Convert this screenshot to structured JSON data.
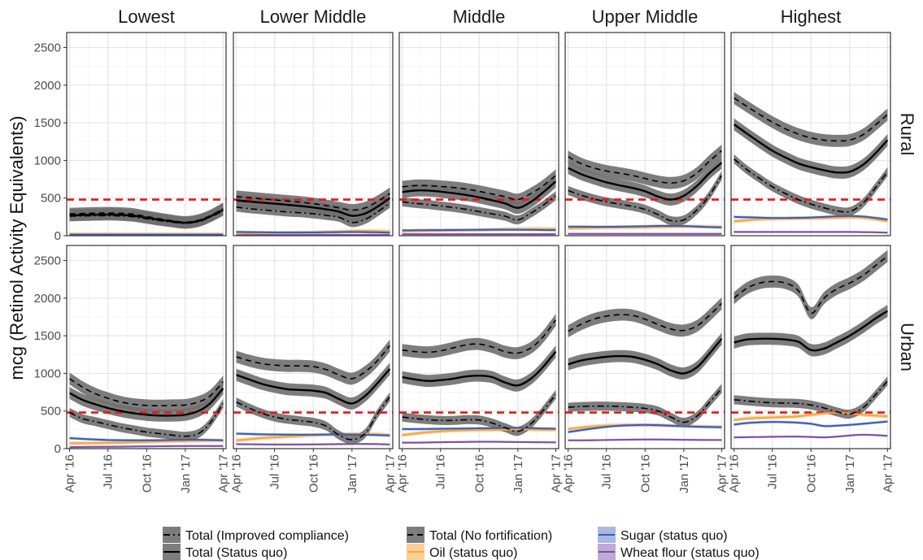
{
  "chart_data": {
    "type": "line",
    "ylabel": "mcg (Retinol Activity Equivalents)",
    "ylim": [
      0,
      2700
    ],
    "y_ticks": [
      0,
      500,
      1000,
      1500,
      2000,
      2500
    ],
    "x_ticks": [
      "Apr '16",
      "Jul '16",
      "Oct '16",
      "Jan '17",
      "Apr '17"
    ],
    "x_dates": [
      "2016-04-01",
      "2016-05-01",
      "2016-06-01",
      "2016-07-01",
      "2016-08-01",
      "2016-09-01",
      "2016-10-01",
      "2016-11-01",
      "2016-12-01",
      "2017-01-01",
      "2017-02-01",
      "2017-03-01",
      "2017-04-01"
    ],
    "columns": [
      "Lowest",
      "Lower Middle",
      "Middle",
      "Upper Middle",
      "Highest"
    ],
    "rows": [
      "Rural",
      "Urban"
    ],
    "reference_line": {
      "value": 480,
      "color": "#e41a1c",
      "style": "dashed"
    },
    "grid": true,
    "legend": {
      "position": "bottom",
      "items": [
        {
          "label": "Total (Improved compliance)",
          "key": "improved",
          "color": "#000000",
          "dash": "8,4,2,4"
        },
        {
          "label": "Total (No fortification)",
          "key": "nofort",
          "color": "#000000",
          "dash": "7,5"
        },
        {
          "label": "Sugar (status quo)",
          "key": "sugar",
          "color": "#3b5bb5",
          "dash": ""
        },
        {
          "label": "Total (Status quo)",
          "key": "status",
          "color": "#000000",
          "dash": ""
        },
        {
          "label": "Oil (status quo)",
          "key": "oil",
          "color": "#f4a640",
          "dash": ""
        },
        {
          "label": "Wheat flour (status quo)",
          "key": "wheat",
          "color": "#7e4fa5",
          "dash": ""
        }
      ]
    },
    "panels": [
      {
        "row": "Rural",
        "col": "Lowest",
        "series": {
          "improved": [
            260,
            262,
            265,
            266,
            262,
            250,
            225,
            200,
            180,
            165,
            185,
            245,
            330
          ],
          "nofort": [
            290,
            295,
            300,
            302,
            298,
            285,
            255,
            225,
            200,
            180,
            205,
            265,
            360
          ],
          "status": [
            270,
            275,
            280,
            282,
            278,
            265,
            240,
            212,
            190,
            172,
            195,
            255,
            345
          ],
          "sugar": [
            15,
            15,
            15,
            15,
            15,
            15,
            15,
            15,
            15,
            15,
            15,
            15,
            15
          ],
          "oil": [
            20,
            20,
            20,
            20,
            20,
            20,
            20,
            20,
            20,
            20,
            20,
            20,
            20
          ],
          "wheat": [
            8,
            8,
            8,
            8,
            8,
            8,
            8,
            8,
            8,
            8,
            8,
            8,
            8
          ]
        }
      },
      {
        "row": "Rural",
        "col": "Lower Middle",
        "series": {
          "improved": [
            380,
            360,
            345,
            330,
            315,
            305,
            290,
            270,
            245,
            175,
            215,
            310,
            430
          ],
          "nofort": [
            520,
            505,
            490,
            475,
            460,
            445,
            425,
            400,
            370,
            340,
            370,
            450,
            560
          ],
          "status": [
            470,
            455,
            440,
            425,
            410,
            395,
            375,
            350,
            320,
            265,
            295,
            380,
            500
          ],
          "sugar": [
            50,
            48,
            45,
            43,
            42,
            42,
            43,
            45,
            48,
            50,
            48,
            45,
            40
          ],
          "oil": [
            30,
            32,
            35,
            38,
            40,
            42,
            45,
            50,
            55,
            60,
            62,
            60,
            55
          ],
          "wheat": [
            10,
            10,
            10,
            10,
            10,
            10,
            10,
            10,
            10,
            10,
            10,
            10,
            10
          ]
        }
      },
      {
        "row": "Rural",
        "col": "Middle",
        "series": {
          "improved": [
            450,
            430,
            415,
            395,
            375,
            350,
            320,
            290,
            260,
            210,
            300,
            400,
            530
          ],
          "nofort": [
            650,
            665,
            665,
            655,
            640,
            620,
            590,
            555,
            520,
            480,
            560,
            660,
            800
          ],
          "status": [
            580,
            600,
            600,
            585,
            565,
            540,
            510,
            470,
            430,
            370,
            450,
            570,
            720
          ],
          "sugar": [
            70,
            72,
            74,
            75,
            76,
            77,
            78,
            80,
            80,
            80,
            78,
            76,
            75
          ],
          "oil": [
            60,
            62,
            65,
            68,
            70,
            72,
            75,
            80,
            85,
            88,
            90,
            90,
            90
          ],
          "wheat": [
            20,
            20,
            20,
            20,
            20,
            20,
            20,
            20,
            20,
            20,
            20,
            20,
            20
          ]
        }
      },
      {
        "row": "Rural",
        "col": "Upper Middle",
        "series": {
          "improved": [
            600,
            540,
            490,
            450,
            420,
            390,
            350,
            280,
            200,
            210,
            340,
            520,
            800
          ],
          "nofort": [
            1050,
            960,
            900,
            860,
            830,
            800,
            760,
            720,
            700,
            730,
            830,
            980,
            1130
          ],
          "status": [
            900,
            820,
            760,
            710,
            670,
            635,
            590,
            520,
            480,
            530,
            660,
            820,
            970
          ],
          "sugar": [
            120,
            120,
            118,
            118,
            120,
            122,
            125,
            130,
            130,
            128,
            122,
            115,
            110
          ],
          "oil": [
            100,
            102,
            105,
            108,
            110,
            112,
            115,
            118,
            120,
            122,
            122,
            120,
            118
          ],
          "wheat": [
            25,
            25,
            25,
            25,
            25,
            25,
            25,
            25,
            25,
            25,
            25,
            25,
            25
          ]
        }
      },
      {
        "row": "Rural",
        "col": "Highest",
        "series": {
          "improved": [
            1020,
            880,
            760,
            650,
            560,
            480,
            420,
            370,
            330,
            320,
            430,
            620,
            850
          ],
          "nofort": [
            1830,
            1720,
            1610,
            1510,
            1420,
            1350,
            1300,
            1270,
            1260,
            1270,
            1340,
            1460,
            1610
          ],
          "status": [
            1480,
            1360,
            1240,
            1130,
            1040,
            960,
            910,
            870,
            840,
            850,
            940,
            1080,
            1270
          ],
          "sugar": [
            250,
            245,
            240,
            235,
            235,
            238,
            242,
            250,
            258,
            262,
            255,
            238,
            215
          ],
          "oil": [
            190,
            205,
            218,
            225,
            228,
            230,
            232,
            235,
            240,
            245,
            240,
            220,
            195
          ],
          "wheat": [
            50,
            50,
            50,
            50,
            50,
            50,
            50,
            50,
            50,
            50,
            48,
            45,
            40
          ]
        }
      },
      {
        "row": "Urban",
        "col": "Lowest",
        "series": {
          "improved": [
            480,
            400,
            360,
            320,
            280,
            250,
            220,
            200,
            180,
            165,
            200,
            340,
            600
          ],
          "nofort": [
            930,
            820,
            730,
            670,
            620,
            590,
            575,
            570,
            575,
            580,
            620,
            700,
            890
          ],
          "status": [
            740,
            650,
            590,
            540,
            500,
            470,
            450,
            440,
            440,
            450,
            500,
            600,
            800
          ],
          "sugar": [
            140,
            130,
            122,
            115,
            112,
            110,
            110,
            112,
            115,
            118,
            118,
            115,
            110
          ],
          "oil": [
            70,
            72,
            75,
            78,
            80,
            85,
            90,
            95,
            100,
            102,
            105,
            108,
            110
          ],
          "wheat": [
            20,
            22,
            24,
            25,
            26,
            28,
            30,
            32,
            34,
            35,
            36,
            36,
            35
          ]
        }
      },
      {
        "row": "Urban",
        "col": "Lower Middle",
        "series": {
          "improved": [
            620,
            540,
            470,
            420,
            390,
            370,
            350,
            300,
            180,
            120,
            200,
            450,
            690
          ],
          "nofort": [
            1220,
            1170,
            1130,
            1110,
            1100,
            1100,
            1090,
            1050,
            980,
            930,
            1020,
            1160,
            1370
          ],
          "status": [
            980,
            920,
            860,
            820,
            790,
            780,
            770,
            740,
            660,
            600,
            700,
            860,
            1060
          ],
          "sugar": [
            200,
            195,
            190,
            188,
            186,
            185,
            185,
            188,
            190,
            188,
            185,
            180,
            175
          ],
          "oil": [
            110,
            125,
            140,
            150,
            160,
            170,
            180,
            185,
            190,
            195,
            195,
            190,
            180
          ],
          "wheat": [
            60,
            58,
            56,
            55,
            55,
            55,
            56,
            58,
            60,
            62,
            62,
            60,
            55
          ]
        }
      },
      {
        "row": "Urban",
        "col": "Middle",
        "series": {
          "improved": [
            420,
            400,
            385,
            375,
            375,
            385,
            380,
            340,
            280,
            230,
            330,
            500,
            720
          ],
          "nofort": [
            1310,
            1290,
            1280,
            1300,
            1340,
            1380,
            1390,
            1350,
            1290,
            1270,
            1340,
            1480,
            1710
          ],
          "status": [
            950,
            920,
            900,
            910,
            930,
            960,
            970,
            950,
            880,
            840,
            930,
            1080,
            1290
          ],
          "sugar": [
            260,
            260,
            262,
            264,
            266,
            268,
            270,
            272,
            275,
            275,
            272,
            268,
            265
          ],
          "oil": [
            180,
            200,
            218,
            230,
            240,
            245,
            248,
            250,
            252,
            255,
            255,
            252,
            250
          ],
          "wheat": [
            80,
            80,
            82,
            85,
            88,
            90,
            92,
            92,
            90,
            88,
            86,
            85,
            84
          ]
        }
      },
      {
        "row": "Urban",
        "col": "Upper Middle",
        "series": {
          "improved": [
            550,
            560,
            565,
            565,
            560,
            550,
            535,
            500,
            420,
            350,
            430,
            600,
            800
          ],
          "nofort": [
            1560,
            1650,
            1720,
            1760,
            1780,
            1770,
            1720,
            1650,
            1590,
            1570,
            1630,
            1760,
            1930
          ],
          "status": [
            1120,
            1170,
            1200,
            1220,
            1230,
            1220,
            1180,
            1120,
            1040,
            1000,
            1080,
            1250,
            1460
          ],
          "sugar": [
            220,
            245,
            270,
            290,
            305,
            312,
            315,
            312,
            305,
            298,
            292,
            288,
            285
          ],
          "oil": [
            260,
            280,
            295,
            305,
            310,
            312,
            312,
            310,
            305,
            300,
            295,
            290,
            288
          ],
          "wheat": [
            110,
            110,
            112,
            115,
            118,
            120,
            122,
            122,
            120,
            118,
            116,
            115,
            115
          ]
        }
      },
      {
        "row": "Urban",
        "col": "Highest",
        "series": {
          "improved": [
            650,
            635,
            620,
            610,
            605,
            600,
            580,
            540,
            490,
            460,
            540,
            700,
            900
          ],
          "nofort": [
            2000,
            2130,
            2200,
            2220,
            2200,
            2100,
            1800,
            2000,
            2120,
            2200,
            2300,
            2420,
            2560
          ],
          "status": [
            1410,
            1450,
            1460,
            1460,
            1450,
            1420,
            1310,
            1330,
            1410,
            1500,
            1610,
            1720,
            1830
          ],
          "sugar": [
            320,
            340,
            350,
            355,
            352,
            345,
            330,
            300,
            305,
            315,
            330,
            345,
            360
          ],
          "oil": [
            380,
            400,
            410,
            415,
            420,
            430,
            450,
            470,
            480,
            470,
            450,
            440,
            430
          ],
          "wheat": [
            150,
            152,
            155,
            158,
            160,
            160,
            155,
            150,
            160,
            175,
            185,
            180,
            170
          ]
        }
      }
    ]
  }
}
